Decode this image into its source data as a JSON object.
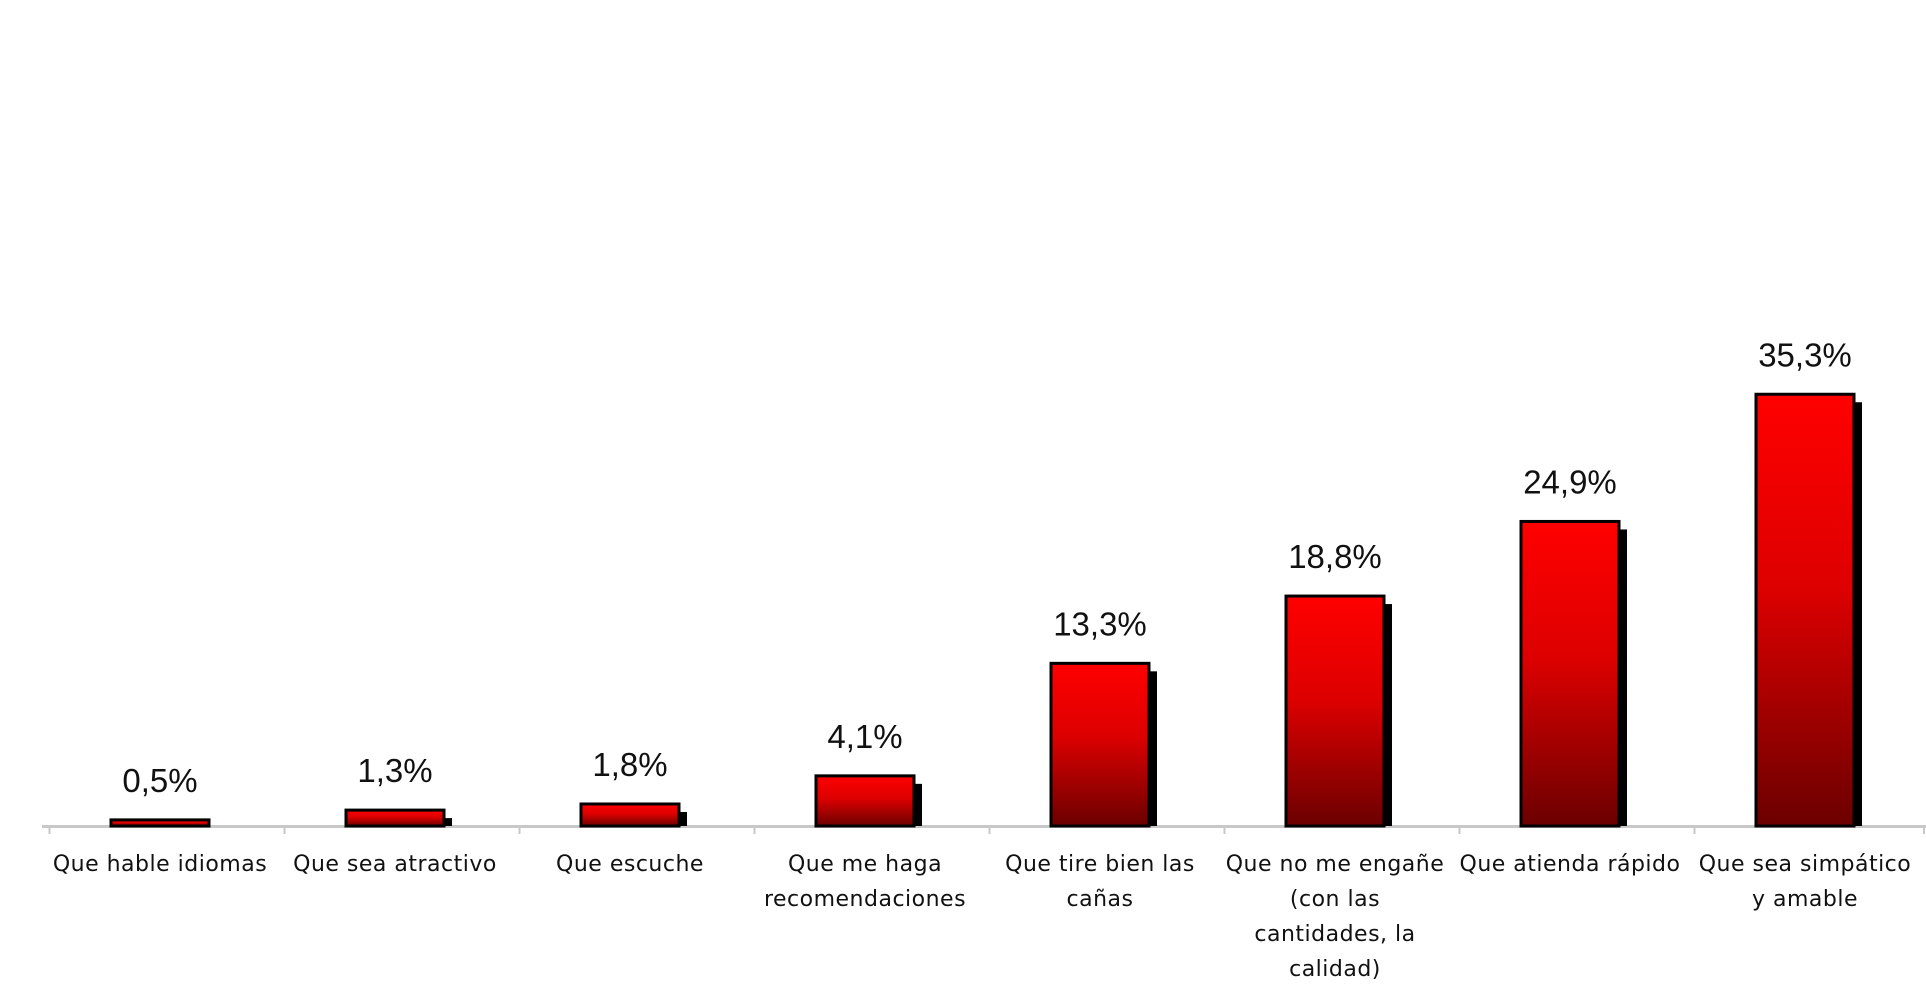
{
  "chart_data": {
    "type": "bar",
    "title": "",
    "xlabel": "",
    "ylabel": "",
    "ylim": [
      0,
      52
    ],
    "grid": false,
    "legend": "none",
    "categories": [
      "Que hable idiomas",
      "Que sea atractivo",
      "Que escuche",
      "Que me haga recomendaciones",
      "Que tire bien las cañas",
      "Que no me engañe (con las cantidades, la calidad)",
      "Que atienda rápido",
      "Que sea simpático y amable"
    ],
    "category_lines": [
      [
        "Que hable idiomas"
      ],
      [
        "Que sea atractivo"
      ],
      [
        "Que escuche"
      ],
      [
        "Que me haga",
        "recomendaciones"
      ],
      [
        "Que tire bien las",
        "cañas"
      ],
      [
        "Que no me engañe",
        "(con las",
        "cantidades, la",
        "calidad)"
      ],
      [
        "Que atienda rápido"
      ],
      [
        "Que sea simpático",
        "y amable"
      ]
    ],
    "values": [
      0.5,
      1.3,
      1.8,
      4.1,
      13.3,
      18.8,
      24.9,
      35.3
    ],
    "value_labels": [
      "0,5%",
      "1,3%",
      "1,8%",
      "4,1%",
      "13,3%",
      "18,8%",
      "24,9%",
      "35,3%"
    ],
    "colors": {
      "bar_top": "#ff0000",
      "bar_mid": "#dd0000",
      "bar_bottom": "#6b0000",
      "bar_outline": "#000000",
      "bar_shadow": "#000000",
      "axis": "#c8c8c8"
    }
  }
}
